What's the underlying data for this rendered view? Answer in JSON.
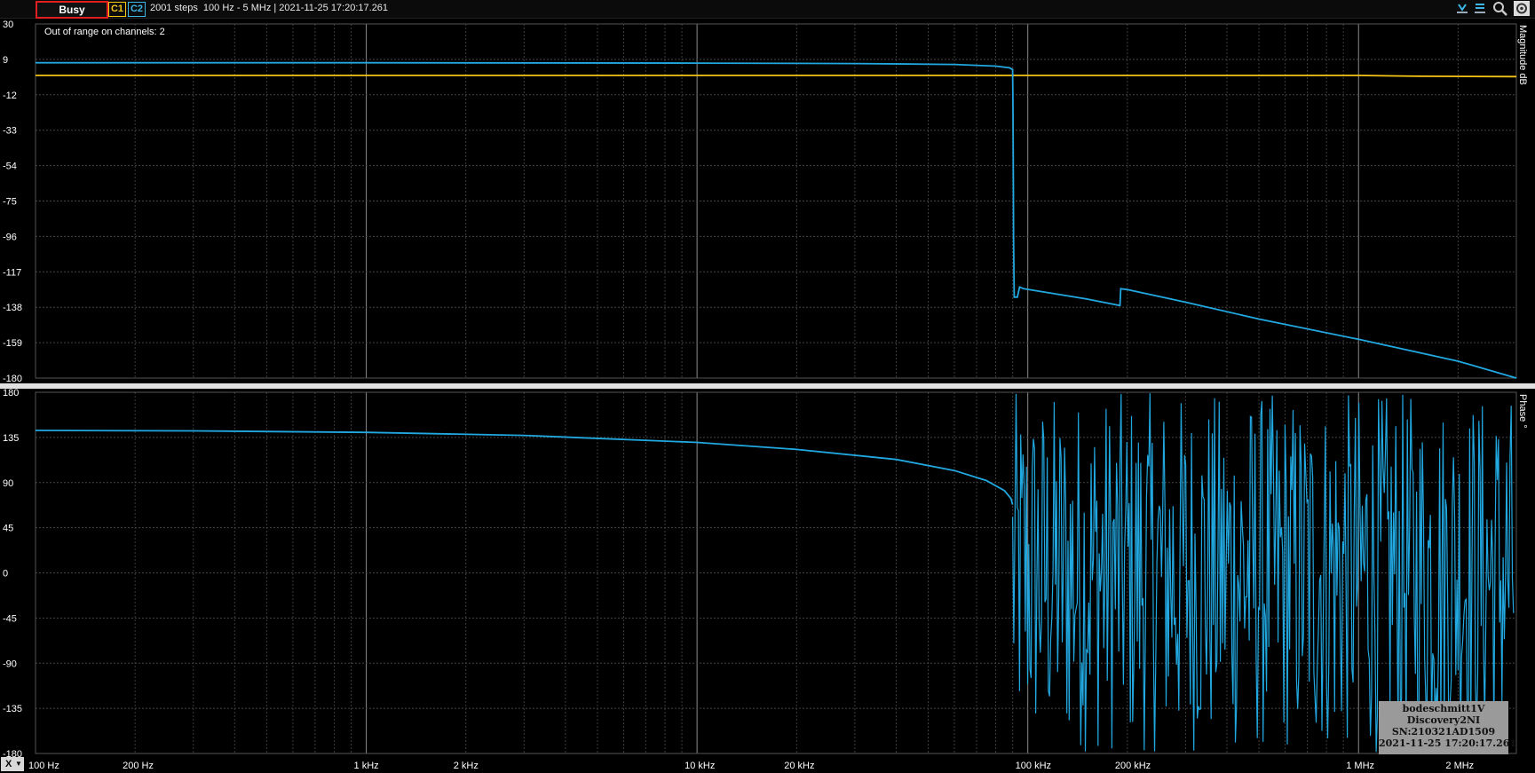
{
  "status": {
    "label": "Busy",
    "color": "#e02020"
  },
  "channels": [
    {
      "label": "C1",
      "color": "#f5c518"
    },
    {
      "label": "C2",
      "color": "#3fb6e8"
    }
  ],
  "sweep_info": "2001 steps  100 Hz - 5 MHz | 2021-11-25 17:20:17.261",
  "toolbar": {
    "icons": [
      "marker-left-icon",
      "marker-right-icon",
      "zoom-icon",
      "settings-icon"
    ]
  },
  "warning": "Out of range on channels: 2",
  "x_axis_button": {
    "label": "X",
    "icon": "chevron-down-icon"
  },
  "stamp": {
    "lines": [
      "bodeschmitt1V",
      "Discovery2NI",
      "SN:210321AD1509",
      "2021-11-25 17:20:17.261"
    ]
  },
  "chart_data": [
    {
      "type": "line",
      "panel": "magnitude",
      "ylabel": "Magnitude dB",
      "xscale": "log",
      "xlim": [
        100,
        3000000
      ],
      "ylim": [
        -180,
        30
      ],
      "yticks": [
        "30",
        "9",
        "-12",
        "-33",
        "-54",
        "-75",
        "-96",
        "-117",
        "-138",
        "-159",
        "-180"
      ],
      "xticks": [
        {
          "value": 100,
          "label": "100 Hz"
        },
        {
          "value": 200,
          "label": "200 Hz"
        },
        {
          "value": 1000,
          "label": "1 kHz"
        },
        {
          "value": 2000,
          "label": "2 kHz"
        },
        {
          "value": 10000,
          "label": "10 kHz"
        },
        {
          "value": 20000,
          "label": "20 kHz"
        },
        {
          "value": 100000,
          "label": "100 kHz"
        },
        {
          "value": 200000,
          "label": "200 kHz"
        },
        {
          "value": 1000000,
          "label": "1 MHz"
        },
        {
          "value": 2000000,
          "label": "2 MHz"
        }
      ],
      "grid": true,
      "series": [
        {
          "color": "#f5c518",
          "x": [
            100,
            1000,
            10000,
            100000,
            1000000,
            1500000,
            3000000
          ],
          "y": [
            -0.5,
            -0.5,
            -0.5,
            -0.5,
            -0.5,
            -1,
            -1.2
          ]
        },
        {
          "color": "#22a8e0",
          "x": [
            100,
            1000,
            10000,
            30000,
            60000,
            80000,
            88000,
            90000,
            90200,
            90400,
            90600,
            91000,
            93000,
            94500,
            97000,
            150000,
            190000,
            191000,
            200000,
            300000,
            500000,
            1000000,
            2000000,
            3000000
          ],
          "y": [
            7,
            7,
            6.8,
            6.5,
            6,
            5,
            4,
            3,
            -20,
            -60,
            -100,
            -132,
            -132,
            -126,
            -127,
            -133,
            -137,
            -127,
            -127.5,
            -135,
            -145,
            -157,
            -170,
            -180
          ]
        }
      ]
    },
    {
      "type": "line",
      "panel": "phase",
      "ylabel": "Phase °",
      "xscale": "log",
      "xlim": [
        100,
        3000000
      ],
      "ylim": [
        -180,
        180
      ],
      "yticks": [
        "180",
        "135",
        "90",
        "45",
        "0",
        "-45",
        "-90",
        "-135",
        "-180"
      ],
      "grid": true,
      "series": [
        {
          "color": "#22a8e0",
          "x": [
            100,
            300,
            1000,
            3000,
            10000,
            20000,
            40000,
            60000,
            75000,
            85000,
            89000,
            90000
          ],
          "y": [
            142,
            141.5,
            140,
            137,
            130,
            123,
            113,
            102,
            92,
            82,
            74,
            68
          ],
          "noise_above_hz": 90000,
          "noise_range": [
            -180,
            180
          ]
        }
      ]
    }
  ]
}
